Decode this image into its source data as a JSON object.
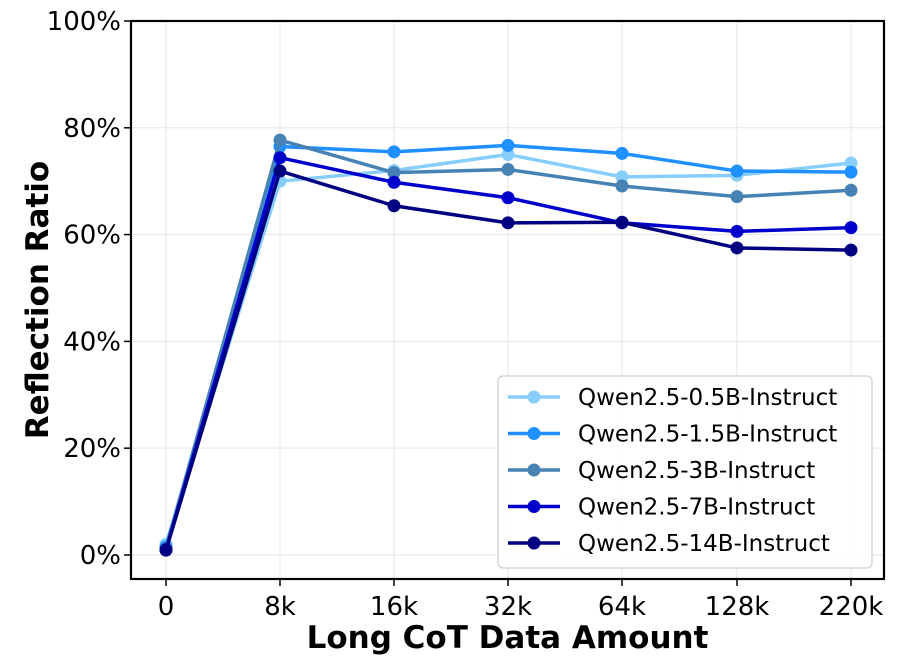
{
  "chart_data": {
    "type": "line",
    "xlabel": "Long CoT Data Amount",
    "ylabel": "Reflection Ratio",
    "categories": [
      "0",
      "8k",
      "16k",
      "32k",
      "64k",
      "128k",
      "220k"
    ],
    "ylim": [
      -4.5,
      100
    ],
    "yticks": [
      0,
      20,
      40,
      60,
      80,
      100
    ],
    "ytick_labels": [
      "0%",
      "20%",
      "40%",
      "60%",
      "80%",
      "100%"
    ],
    "grid": true,
    "legend_position": "lower-right",
    "series": [
      {
        "name": "Qwen2.5-0.5B-Instruct",
        "color": "#87cefa",
        "values": [
          2.0,
          70.0,
          72.0,
          75.0,
          70.8,
          71.1,
          73.4
        ]
      },
      {
        "name": "Qwen2.5-1.5B-Instruct",
        "color": "#1e90ff",
        "values": [
          1.5,
          76.5,
          75.5,
          76.7,
          75.2,
          71.9,
          71.7
        ]
      },
      {
        "name": "Qwen2.5-3B-Instruct",
        "color": "#4682b4",
        "values": [
          1.2,
          77.7,
          71.6,
          72.2,
          69.1,
          67.1,
          68.3
        ]
      },
      {
        "name": "Qwen2.5-7B-Instruct",
        "color": "#0000cd",
        "values": [
          1.0,
          74.4,
          69.8,
          66.9,
          62.2,
          60.6,
          61.3
        ]
      },
      {
        "name": "Qwen2.5-14B-Instruct",
        "color": "#000080",
        "values": [
          0.9,
          71.9,
          65.4,
          62.2,
          62.3,
          57.5,
          57.1
        ]
      }
    ]
  }
}
